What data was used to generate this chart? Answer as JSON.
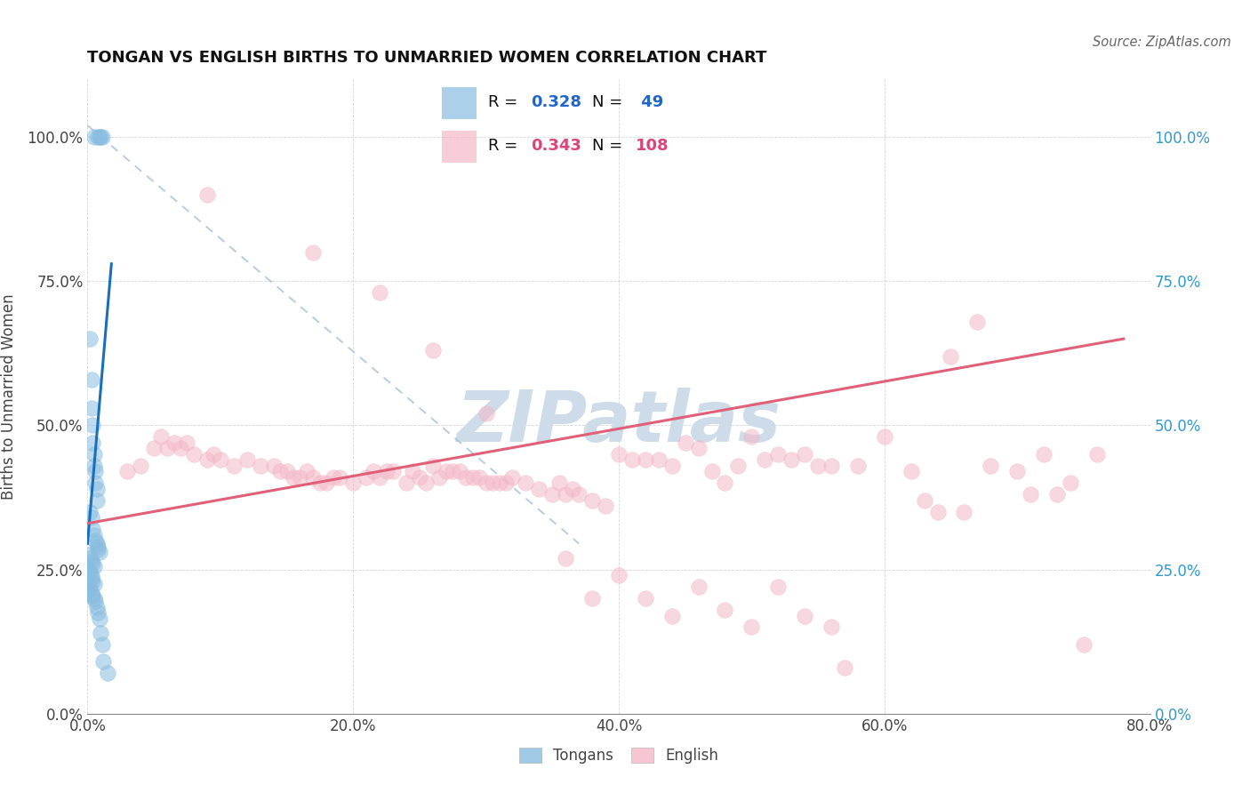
{
  "title": "TONGAN VS ENGLISH BIRTHS TO UNMARRIED WOMEN CORRELATION CHART",
  "source": "Source: ZipAtlas.com",
  "ylabel": "Births to Unmarried Women",
  "x_min": 0.0,
  "x_max": 0.8,
  "y_min": 0.0,
  "y_max": 1.1,
  "tongan_R": 0.328,
  "tongan_N": 49,
  "english_R": 0.343,
  "english_N": 108,
  "tongan_color": "#89bde0",
  "english_color": "#f4b8c8",
  "tongan_line_color": "#1a6fba",
  "english_line_color": "#e0607a",
  "diagonal_color": "#a8c4dc",
  "watermark_color": "#cddce8",
  "legend_text_color": "#111111",
  "legend_num_color_blue": "#2266cc",
  "legend_num_color_pink": "#dd4477",
  "right_tick_color": "#3399cc",
  "x_ticks": [
    0.0,
    0.2,
    0.4,
    0.6,
    0.8
  ],
  "y_ticks": [
    0.0,
    0.25,
    0.5,
    0.75,
    1.0
  ],
  "tongan_x": [
    0.005,
    0.008,
    0.009,
    0.01,
    0.011,
    0.002,
    0.003,
    0.003,
    0.004,
    0.004,
    0.005,
    0.005,
    0.006,
    0.006,
    0.007,
    0.007,
    0.002,
    0.003,
    0.004,
    0.005,
    0.006,
    0.007,
    0.008,
    0.008,
    0.009,
    0.001,
    0.002,
    0.003,
    0.004,
    0.005,
    0.001,
    0.002,
    0.003,
    0.003,
    0.004,
    0.005,
    0.001,
    0.002,
    0.003,
    0.004,
    0.005,
    0.006,
    0.007,
    0.008,
    0.009,
    0.01,
    0.011,
    0.012,
    0.015
  ],
  "tongan_y": [
    1.0,
    1.0,
    1.0,
    1.0,
    1.0,
    0.65,
    0.58,
    0.53,
    0.5,
    0.47,
    0.45,
    0.43,
    0.42,
    0.4,
    0.39,
    0.37,
    0.35,
    0.34,
    0.32,
    0.31,
    0.3,
    0.295,
    0.29,
    0.285,
    0.28,
    0.275,
    0.27,
    0.265,
    0.26,
    0.255,
    0.25,
    0.245,
    0.24,
    0.235,
    0.23,
    0.225,
    0.22,
    0.215,
    0.21,
    0.205,
    0.2,
    0.195,
    0.185,
    0.175,
    0.165,
    0.14,
    0.12,
    0.09,
    0.07
  ],
  "english_x": [
    0.03,
    0.04,
    0.05,
    0.055,
    0.06,
    0.065,
    0.07,
    0.075,
    0.08,
    0.09,
    0.095,
    0.1,
    0.11,
    0.12,
    0.13,
    0.14,
    0.145,
    0.15,
    0.155,
    0.16,
    0.165,
    0.17,
    0.175,
    0.18,
    0.185,
    0.19,
    0.2,
    0.21,
    0.215,
    0.22,
    0.225,
    0.23,
    0.24,
    0.245,
    0.25,
    0.255,
    0.26,
    0.265,
    0.27,
    0.275,
    0.28,
    0.285,
    0.29,
    0.295,
    0.3,
    0.305,
    0.31,
    0.315,
    0.32,
    0.33,
    0.34,
    0.35,
    0.355,
    0.36,
    0.365,
    0.37,
    0.38,
    0.39,
    0.4,
    0.41,
    0.42,
    0.43,
    0.44,
    0.45,
    0.46,
    0.47,
    0.48,
    0.49,
    0.5,
    0.51,
    0.52,
    0.53,
    0.54,
    0.55,
    0.56,
    0.58,
    0.6,
    0.62,
    0.63,
    0.64,
    0.65,
    0.66,
    0.67,
    0.68,
    0.7,
    0.71,
    0.72,
    0.73,
    0.74,
    0.75,
    0.76,
    0.36,
    0.38,
    0.4,
    0.42,
    0.44,
    0.46,
    0.48,
    0.5,
    0.52,
    0.54,
    0.56,
    0.57,
    0.09,
    0.17,
    0.22,
    0.26,
    0.3
  ],
  "english_y": [
    0.42,
    0.43,
    0.46,
    0.48,
    0.46,
    0.47,
    0.46,
    0.47,
    0.45,
    0.44,
    0.45,
    0.44,
    0.43,
    0.44,
    0.43,
    0.43,
    0.42,
    0.42,
    0.41,
    0.41,
    0.42,
    0.41,
    0.4,
    0.4,
    0.41,
    0.41,
    0.4,
    0.41,
    0.42,
    0.41,
    0.42,
    0.42,
    0.4,
    0.42,
    0.41,
    0.4,
    0.43,
    0.41,
    0.42,
    0.42,
    0.42,
    0.41,
    0.41,
    0.41,
    0.4,
    0.4,
    0.4,
    0.4,
    0.41,
    0.4,
    0.39,
    0.38,
    0.4,
    0.38,
    0.39,
    0.38,
    0.37,
    0.36,
    0.45,
    0.44,
    0.44,
    0.44,
    0.43,
    0.47,
    0.46,
    0.42,
    0.4,
    0.43,
    0.48,
    0.44,
    0.45,
    0.44,
    0.45,
    0.43,
    0.43,
    0.43,
    0.48,
    0.42,
    0.37,
    0.35,
    0.62,
    0.35,
    0.68,
    0.43,
    0.42,
    0.38,
    0.45,
    0.38,
    0.4,
    0.12,
    0.45,
    0.27,
    0.2,
    0.24,
    0.2,
    0.17,
    0.22,
    0.18,
    0.15,
    0.22,
    0.17,
    0.15,
    0.08,
    0.9,
    0.8,
    0.73,
    0.63,
    0.52
  ]
}
